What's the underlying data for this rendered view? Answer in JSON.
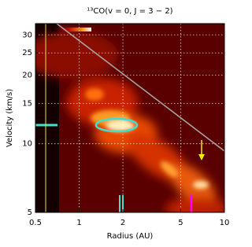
{
  "chart_data": {
    "type": "heatmap",
    "title": "¹³CO(v = 0, J = 3 − 2)",
    "x_label": "Radius (AU)",
    "y_label": "Velocity (km/s)",
    "xlim": [
      0.5,
      10
    ],
    "xticks": [
      0.5,
      1,
      2,
      5,
      10
    ],
    "xscale": "log",
    "ylim": [
      5,
      33.6
    ],
    "yticks": [
      5,
      10,
      15,
      20,
      25,
      30
    ],
    "yscale": "log",
    "grid": true
  }
}
